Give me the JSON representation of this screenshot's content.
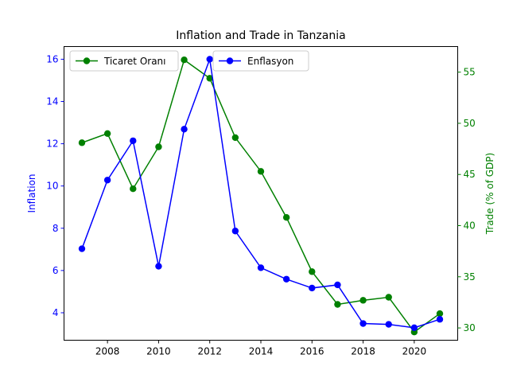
{
  "chart_data": {
    "type": "line",
    "title": "Inflation and Trade in Tanzania",
    "xlabel": "",
    "x": [
      2007,
      2008,
      2009,
      2010,
      2011,
      2012,
      2013,
      2014,
      2015,
      2016,
      2017,
      2018,
      2019,
      2020,
      2021
    ],
    "xlim": [
      2006.3,
      2021.7
    ],
    "xticks": [
      2008,
      2010,
      2012,
      2014,
      2016,
      2018,
      2020
    ],
    "y_left": {
      "label": "Inflation",
      "color": "#0000ff",
      "lim": [
        2.7,
        16.6
      ],
      "ticks": [
        4,
        6,
        8,
        10,
        12,
        14,
        16
      ]
    },
    "y_right": {
      "label": "Trade (% of GDP)",
      "color": "#008000",
      "lim": [
        28.8,
        57.5
      ],
      "ticks": [
        30,
        35,
        40,
        45,
        50,
        55
      ]
    },
    "series": [
      {
        "name": "Enflasyon",
        "axis": "left",
        "color": "#0000ff",
        "values": [
          7.03,
          10.28,
          12.14,
          6.2,
          12.69,
          16.0,
          7.87,
          6.13,
          5.59,
          5.17,
          5.32,
          3.49,
          3.45,
          3.29,
          3.69
        ]
      },
      {
        "name": "Ticaret Oranı",
        "axis": "right",
        "color": "#008000",
        "values": [
          48.1,
          49.0,
          43.6,
          47.7,
          56.2,
          54.4,
          48.6,
          45.3,
          40.8,
          35.5,
          32.3,
          32.7,
          33.0,
          29.6,
          31.4
        ]
      }
    ],
    "legends": {
      "left": [
        "Ticaret Oranı"
      ],
      "right": [
        "Enflasyon"
      ]
    },
    "grid": false
  }
}
